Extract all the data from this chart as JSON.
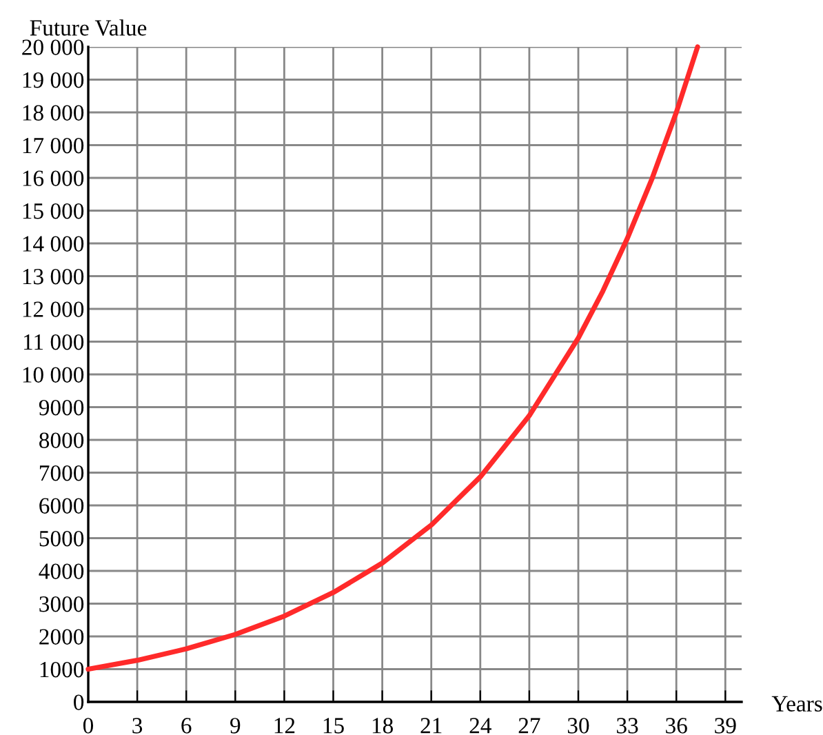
{
  "chart_data": {
    "type": "line",
    "xlabel": "Years",
    "ylabel": "Future Value",
    "x": [
      0,
      3,
      6,
      9,
      12,
      15,
      18,
      21,
      24,
      27,
      30,
      31.5,
      33,
      34.5,
      36,
      37.3
    ],
    "series": [
      {
        "color": "#ff2a2a",
        "values": [
          1000,
          1270,
          1620,
          2060,
          2620,
          3340,
          4240,
          5400,
          6870,
          8740,
          11110,
          12540,
          14150,
          15960,
          18000,
          20000
        ]
      }
    ],
    "xlim": [
      0,
      40
    ],
    "ylim": [
      0,
      20000
    ],
    "xticks": [
      0,
      3,
      6,
      9,
      12,
      15,
      18,
      21,
      24,
      27,
      30,
      33,
      36,
      39
    ],
    "yticks": [
      0,
      1000,
      2000,
      3000,
      4000,
      5000,
      6000,
      7000,
      8000,
      9000,
      {
        "value": 10000,
        "label": "10 000"
      },
      {
        "value": 11000,
        "label": "11 000"
      },
      {
        "value": 12000,
        "label": "12 000"
      },
      {
        "value": 13000,
        "label": "13 000"
      },
      {
        "value": 14000,
        "label": "14 000"
      },
      {
        "value": 15000,
        "label": "15 000"
      },
      {
        "value": 16000,
        "label": "16 000"
      },
      {
        "value": 17000,
        "label": "17 000"
      },
      {
        "value": 18000,
        "label": "18 000"
      },
      {
        "value": 19000,
        "label": "19 000"
      },
      {
        "value": 20000,
        "label": "20 000"
      }
    ],
    "grid": true,
    "marker": "none",
    "line_style": "solid"
  }
}
